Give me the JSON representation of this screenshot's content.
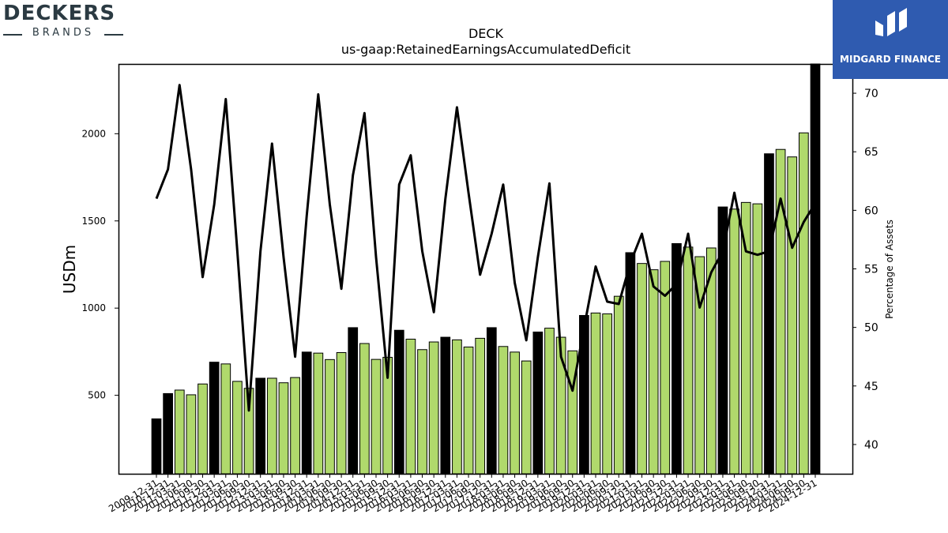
{
  "branding": {
    "left_logo_main": "DECKERS",
    "left_logo_sub": "BRANDS",
    "right_logo_text": "MIDGARD FINANCE"
  },
  "chart_data": {
    "type": "bar",
    "title": "DECK",
    "subtitle": "us-gaap:RetainedEarningsAccumulatedDeficit",
    "ylabel": "USDm",
    "y2label": "Percentage of Assets",
    "ylim": [
      50,
      2400
    ],
    "y2lim": [
      37.5,
      72.5
    ],
    "yticks": [
      500,
      1000,
      1500,
      2000
    ],
    "y2ticks": [
      40,
      45,
      50,
      55,
      60,
      65,
      70
    ],
    "grid": false,
    "categories": [
      "2009-12-31",
      "2010-12-31",
      "2011-03-31",
      "2011-06-30",
      "2011-09-30",
      "2011-12-31",
      "2012-03-31",
      "2012-06-30",
      "2012-09-30",
      "2012-12-31",
      "2013-03-31",
      "2013-06-30",
      "2013-09-30",
      "2013-12-31",
      "2014-03-31",
      "2014-06-30",
      "2014-09-30",
      "2014-12-31",
      "2015-03-31",
      "2015-06-30",
      "2015-09-30",
      "2015-12-31",
      "2016-03-31",
      "2016-06-30",
      "2016-09-30",
      "2016-12-31",
      "2017-03-31",
      "2017-06-30",
      "2017-09-30",
      "2017-12-31",
      "2018-03-31",
      "2018-06-30",
      "2018-09-30",
      "2018-12-31",
      "2019-03-31",
      "2019-06-30",
      "2019-09-30",
      "2019-12-31",
      "2020-03-31",
      "2020-06-30",
      "2020-09-30",
      "2020-12-31",
      "2021-03-31",
      "2021-06-30",
      "2021-09-30",
      "2021-12-31",
      "2022-03-31",
      "2022-06-30",
      "2022-09-30",
      "2022-12-31",
      "2023-03-31",
      "2023-06-30",
      "2023-09-30",
      "2023-12-31",
      "2024-03-31",
      "2024-06-30",
      "2024-09-30",
      "2024-12-31"
    ],
    "series": [
      {
        "axis": "left",
        "kind": "bar",
        "values": [
          365,
          510,
          530,
          503,
          565,
          690,
          680,
          580,
          540,
          598,
          598,
          572,
          602,
          748,
          742,
          705,
          745,
          888,
          797,
          706,
          718,
          873,
          822,
          762,
          806,
          833,
          818,
          777,
          827,
          888,
          780,
          748,
          697,
          863,
          885,
          833,
          755,
          958,
          972,
          967,
          1068,
          1318,
          1256,
          1220,
          1268,
          1370,
          1350,
          1295,
          1345,
          1580,
          1568,
          1606,
          1598,
          1885,
          1910,
          1867,
          2005,
          2400
        ],
        "highlight": [
          true,
          true,
          false,
          false,
          false,
          true,
          false,
          false,
          false,
          true,
          false,
          false,
          false,
          true,
          false,
          false,
          false,
          true,
          false,
          false,
          false,
          true,
          false,
          false,
          false,
          true,
          false,
          false,
          false,
          true,
          false,
          false,
          false,
          true,
          false,
          false,
          false,
          true,
          false,
          false,
          false,
          true,
          false,
          false,
          false,
          true,
          false,
          false,
          false,
          true,
          false,
          false,
          false,
          true,
          false,
          false,
          false,
          true
        ],
        "color": "#b0d96c",
        "highlight_color": "#000000"
      },
      {
        "axis": "right",
        "kind": "line",
        "color": "#000000",
        "values": [
          61.0,
          63.5,
          70.7,
          63.5,
          54.3,
          60.5,
          69.5,
          56.5,
          42.9,
          56.5,
          65.7,
          56.0,
          47.5,
          59.5,
          69.9,
          60.5,
          53.3,
          63.0,
          68.3,
          56.0,
          45.7,
          62.2,
          64.7,
          56.5,
          51.3,
          61.0,
          68.8,
          61.5,
          54.5,
          58.0,
          62.2,
          53.8,
          48.9,
          56.0,
          62.3,
          47.5,
          44.6,
          50.0,
          55.2,
          52.2,
          52.0,
          55.5,
          58.0,
          53.5,
          52.7,
          53.7,
          58.0,
          51.7,
          54.7,
          56.5,
          61.5,
          56.5,
          56.2,
          56.5,
          61.0,
          56.8,
          59.0,
          60.6
        ]
      }
    ]
  }
}
